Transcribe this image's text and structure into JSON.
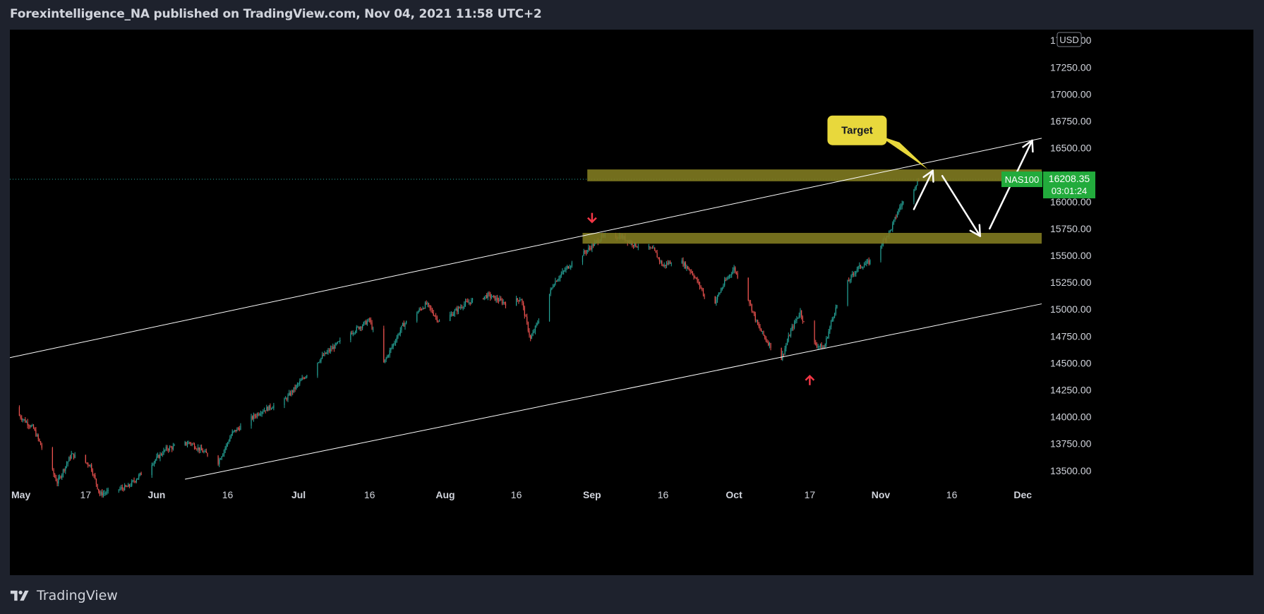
{
  "header": {
    "title": "Forexintelligence_NA published on TradingView.com, Nov 04, 2021 11:58 UTC+2"
  },
  "footer": {
    "brand": "TradingView",
    "logo_icon": "tradingview-logo-icon"
  },
  "colors": {
    "background": "#000000",
    "frame": "#1e222d",
    "up_candle": "#26a69a",
    "down_candle": "#ef5350",
    "zone": "#807a20",
    "price_tag": "#22ab3c",
    "callout": "#e8d83c",
    "arrow": "#ffffff",
    "signal_arrow": "#f23645",
    "channel_line": "#ffffff"
  },
  "chart_data": {
    "type": "candlestick",
    "symbol": "NAS100",
    "currency": "USD",
    "last_price": "16208.35",
    "countdown": "03:01:24",
    "y_axis": {
      "ticks": [
        "17500.00",
        "17250.00",
        "17000.00",
        "16750.00",
        "16500.00",
        "16250.00",
        "16000.00",
        "15750.00",
        "15500.00",
        "15250.00",
        "15000.00",
        "14750.00",
        "14500.00",
        "14250.00",
        "14000.00",
        "13750.00",
        "13500.00"
      ],
      "range": [
        13400,
        17600
      ]
    },
    "x_axis": {
      "labels": [
        {
          "text": "May",
          "date": "2021-05-01",
          "bold": true
        },
        {
          "text": "17",
          "date": "2021-05-17",
          "bold": false
        },
        {
          "text": "Jun",
          "date": "2021-06-01",
          "bold": true
        },
        {
          "text": "16",
          "date": "2021-06-16",
          "bold": false
        },
        {
          "text": "Jul",
          "date": "2021-07-01",
          "bold": true
        },
        {
          "text": "16",
          "date": "2021-07-16",
          "bold": false
        },
        {
          "text": "Aug",
          "date": "2021-08-01",
          "bold": true
        },
        {
          "text": "16",
          "date": "2021-08-16",
          "bold": false
        },
        {
          "text": "Sep",
          "date": "2021-09-01",
          "bold": true
        },
        {
          "text": "16",
          "date": "2021-09-16",
          "bold": false
        },
        {
          "text": "Oct",
          "date": "2021-10-01",
          "bold": true
        },
        {
          "text": "17",
          "date": "2021-10-17",
          "bold": false
        },
        {
          "text": "Nov",
          "date": "2021-11-01",
          "bold": true
        },
        {
          "text": "16",
          "date": "2021-11-16",
          "bold": false
        },
        {
          "text": "Dec",
          "date": "2021-12-01",
          "bold": true
        }
      ],
      "range": [
        "2021-05-01",
        "2021-12-05"
      ]
    },
    "price_path": [
      [
        "2021-05-01",
        14090
      ],
      [
        "2021-05-06",
        13890
      ],
      [
        "2021-05-11",
        13390
      ],
      [
        "2021-05-14",
        13650
      ],
      [
        "2021-05-18",
        13550
      ],
      [
        "2021-05-20",
        13280
      ],
      [
        "2021-05-26",
        13350
      ],
      [
        "2021-06-03",
        13700
      ],
      [
        "2021-06-08",
        13760
      ],
      [
        "2021-06-14",
        13580
      ],
      [
        "2021-06-17",
        13850
      ],
      [
        "2021-06-23",
        14050
      ],
      [
        "2021-06-28",
        14150
      ],
      [
        "2021-07-02",
        14360
      ],
      [
        "2021-07-06",
        14560
      ],
      [
        "2021-07-12",
        14780
      ],
      [
        "2021-07-16",
        14900
      ],
      [
        "2021-07-19",
        14500
      ],
      [
        "2021-07-23",
        14850
      ],
      [
        "2021-07-28",
        15050
      ],
      [
        "2021-07-31",
        14870
      ],
      [
        "2021-08-05",
        15050
      ],
      [
        "2021-08-10",
        15130
      ],
      [
        "2021-08-14",
        15050
      ],
      [
        "2021-08-17",
        15100
      ],
      [
        "2021-08-19",
        14720
      ],
      [
        "2021-08-24",
        15250
      ],
      [
        "2021-08-27",
        15400
      ],
      [
        "2021-08-31",
        15550
      ],
      [
        "2021-09-03",
        15670
      ],
      [
        "2021-09-07",
        15680
      ],
      [
        "2021-09-10",
        15600
      ],
      [
        "2021-09-14",
        15550
      ],
      [
        "2021-09-16",
        15400
      ],
      [
        "2021-09-19",
        15480
      ],
      [
        "2021-09-22",
        15350
      ],
      [
        "2021-09-24",
        15200
      ],
      [
        "2021-09-26",
        14980
      ],
      [
        "2021-09-29",
        15250
      ],
      [
        "2021-10-01",
        15380
      ],
      [
        "2021-10-04",
        15100
      ],
      [
        "2021-10-06",
        14850
      ],
      [
        "2021-10-08",
        14700
      ],
      [
        "2021-10-11",
        14540
      ],
      [
        "2021-10-13",
        14800
      ],
      [
        "2021-10-15",
        14980
      ],
      [
        "2021-10-17",
        14700
      ],
      [
        "2021-10-20",
        14640
      ],
      [
        "2021-10-22",
        14950
      ],
      [
        "2021-10-24",
        15180
      ],
      [
        "2021-10-27",
        15380
      ],
      [
        "2021-10-30",
        15450
      ],
      [
        "2021-11-01",
        15600
      ],
      [
        "2021-11-03",
        15730
      ],
      [
        "2021-11-05",
        15950
      ],
      [
        "2021-11-07",
        16060
      ],
      [
        "2021-11-09",
        16208
      ]
    ],
    "zones": [
      {
        "name": "resistance-zone-top",
        "from": "2021-08-31",
        "to": "2021-12-08",
        "low": 16190,
        "high": 16300
      },
      {
        "name": "resistance-zone-mid",
        "from": "2021-08-30",
        "to": "2021-12-08",
        "low": 15610,
        "high": 15710
      }
    ],
    "channel": [
      {
        "name": "channel-upper-line",
        "p1": [
          "2021-05-01",
          14550
        ],
        "p2": [
          "2021-12-08",
          16590
        ]
      },
      {
        "name": "channel-lower-line",
        "p1": [
          "2021-06-07",
          13420
        ],
        "p2": [
          "2021-12-08",
          15050
        ]
      }
    ],
    "projection_arrows": [
      {
        "name": "projection-arrow-up-1",
        "from": [
          "2021-11-08",
          15930
        ],
        "to": [
          "2021-11-12",
          16290
        ]
      },
      {
        "name": "projection-arrow-down",
        "from": [
          "2021-11-14",
          16240
        ],
        "to": [
          "2021-11-22",
          15680
        ]
      },
      {
        "name": "projection-arrow-up-2",
        "from": [
          "2021-11-24",
          15750
        ],
        "to": [
          "2021-12-03",
          16570
        ]
      }
    ],
    "signal_arrows": [
      {
        "name": "sell-signal-arrow",
        "direction": "down",
        "at": [
          "2021-09-01",
          15850
        ]
      },
      {
        "name": "buy-signal-arrow",
        "direction": "up",
        "at": [
          "2021-10-17",
          14340
        ]
      }
    ],
    "annotations": [
      {
        "name": "target-callout",
        "text": "Target",
        "at": [
          "2021-10-27",
          16670
        ],
        "pointer": [
          "2021-11-11",
          16300
        ]
      }
    ]
  }
}
